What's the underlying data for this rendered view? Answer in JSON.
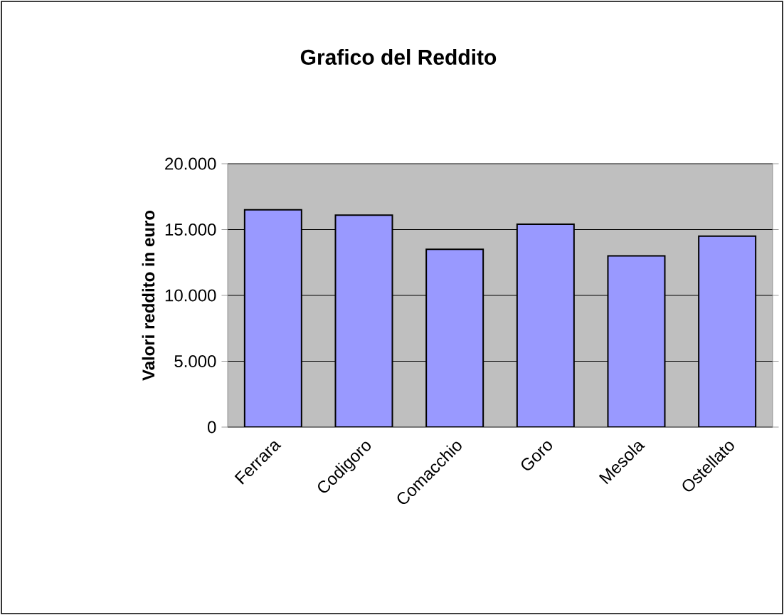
{
  "chart_data": {
    "type": "bar",
    "title": "Grafico del Reddito",
    "ylabel": "Valori reddito in euro",
    "categories": [
      "Ferrara",
      "Codigoro",
      "Comacchio",
      "Goro",
      "Mesola",
      "Ostellato"
    ],
    "values": [
      16500,
      16100,
      13500,
      15400,
      13000,
      14500
    ],
    "color": "#9999ff",
    "ylim": [
      0,
      20000
    ],
    "yticks": [
      0,
      {
        "value": 5000,
        "label": "5.000"
      },
      {
        "value": 10000,
        "label": "10.000"
      },
      {
        "value": 15000,
        "label": "15.000"
      },
      {
        "value": 20000,
        "label": "20.000"
      }
    ],
    "grid": "y"
  }
}
